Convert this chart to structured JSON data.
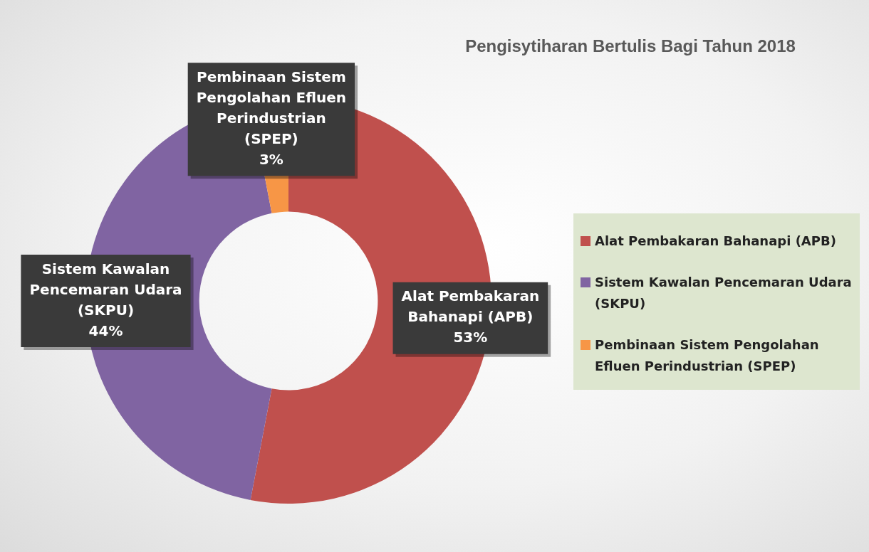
{
  "chart_data": {
    "type": "donut",
    "title": "Pengisytiharan Bertulis Bagi Tahun 2018",
    "categories": [
      "Alat Pembakaran Bahanapi (APB)",
      "Sistem Kawalan Pencemaran Udara (SKPU)",
      "Pembinaan Sistem Pengolahan Efluen Perindustrian (SPEP)"
    ],
    "values": [
      53,
      44,
      3
    ],
    "colors": [
      "#c0504d",
      "#8064a2",
      "#f79646"
    ],
    "value_labels": [
      "53%",
      "44%",
      "3%"
    ],
    "legend": "right"
  }
}
